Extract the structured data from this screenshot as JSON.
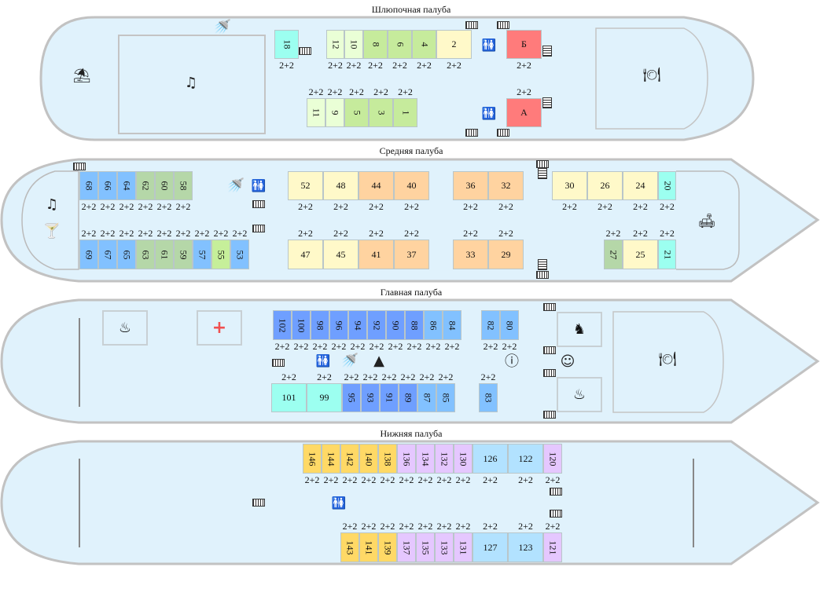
{
  "colors": {
    "pale": "#eaffd6",
    "green": "#c6eb9c",
    "yellow": "#fff9c9",
    "cyan": "#9cfff0",
    "red": "#ff7b7b",
    "blue": "#82c1ff",
    "sage": "#b5d7a8",
    "orange": "#ffd3a0",
    "dblue": "#6f9fff",
    "lime": "#c6ef9a",
    "gold": "#ffd966",
    "lav": "#e5c7ff",
    "sky": "#b2e2ff",
    "hull": "#e0f2fc",
    "hull_stroke": "#c2c2c2"
  },
  "decks": [
    {
      "title": "Шлюпочная палуба",
      "rows": [
        {
          "cabins": [
            {
              "n": "18",
              "cap": "2+2",
              "c": "cyan"
            }
          ]
        },
        {
          "cabins": [
            {
              "n": "12",
              "cap": "2+2",
              "c": "pale"
            },
            {
              "n": "10",
              "cap": "2+2",
              "c": "pale"
            },
            {
              "n": "8",
              "cap": "2+2",
              "c": "green"
            },
            {
              "n": "6",
              "cap": "2+2",
              "c": "green"
            },
            {
              "n": "4",
              "cap": "2+2",
              "c": "green"
            },
            {
              "n": "2",
              "cap": "2+2",
              "c": "yellow"
            }
          ]
        },
        {
          "cabins": [
            {
              "n": "Б",
              "cap": "2+2",
              "c": "red"
            }
          ]
        },
        {
          "cabins": [
            {
              "n": "11",
              "cap": "2+2",
              "c": "pale"
            },
            {
              "n": "9",
              "cap": "2+2",
              "c": "pale"
            },
            {
              "n": "5",
              "cap": "2+2",
              "c": "green"
            },
            {
              "n": "3",
              "cap": "2+2",
              "c": "green"
            },
            {
              "n": "1",
              "cap": "2+2",
              "c": "green"
            }
          ]
        },
        {
          "cabins": [
            {
              "n": "А",
              "cap": "2+2",
              "c": "red"
            }
          ]
        }
      ],
      "icons": [
        "beach-umbrella",
        "music",
        "shower",
        "restroom",
        "restroom",
        "restaurant"
      ]
    },
    {
      "title": "Средняя палуба",
      "rows": [
        {
          "cabins": [
            {
              "n": "68",
              "cap": "2+2",
              "c": "blue"
            },
            {
              "n": "66",
              "cap": "2+2",
              "c": "blue"
            },
            {
              "n": "64",
              "cap": "2+2",
              "c": "blue"
            },
            {
              "n": "62",
              "cap": "2+2",
              "c": "sage"
            },
            {
              "n": "60",
              "cap": "2+2",
              "c": "sage"
            },
            {
              "n": "58",
              "cap": "2+2",
              "c": "sage"
            }
          ]
        },
        {
          "cabins": [
            {
              "n": "69",
              "cap": "2+2",
              "c": "blue"
            },
            {
              "n": "67",
              "cap": "2+2",
              "c": "blue"
            },
            {
              "n": "65",
              "cap": "2+2",
              "c": "blue"
            },
            {
              "n": "63",
              "cap": "2+2",
              "c": "sage"
            },
            {
              "n": "61",
              "cap": "2+2",
              "c": "sage"
            },
            {
              "n": "59",
              "cap": "2+2",
              "c": "sage"
            },
            {
              "n": "57",
              "cap": "2+2",
              "c": "blue"
            },
            {
              "n": "55",
              "cap": "2+2",
              "c": "lime"
            },
            {
              "n": "53",
              "cap": "2+2",
              "c": "blue"
            }
          ]
        },
        {
          "cabins": [
            {
              "n": "52",
              "cap": "2+2",
              "c": "yellow"
            },
            {
              "n": "48",
              "cap": "2+2",
              "c": "yellow"
            },
            {
              "n": "44",
              "cap": "2+2",
              "c": "orange"
            },
            {
              "n": "40",
              "cap": "2+2",
              "c": "orange"
            }
          ]
        },
        {
          "cabins": [
            {
              "n": "36",
              "cap": "2+2",
              "c": "orange"
            },
            {
              "n": "32",
              "cap": "2+2",
              "c": "orange"
            }
          ]
        },
        {
          "cabins": [
            {
              "n": "30",
              "cap": "2+2",
              "c": "yellow"
            },
            {
              "n": "26",
              "cap": "2+2",
              "c": "yellow"
            },
            {
              "n": "24",
              "cap": "2+2",
              "c": "yellow"
            },
            {
              "n": "20",
              "cap": "2+2",
              "c": "cyan"
            }
          ]
        },
        {
          "cabins": [
            {
              "n": "47",
              "cap": "2+2",
              "c": "yellow"
            },
            {
              "n": "45",
              "cap": "2+2",
              "c": "yellow"
            },
            {
              "n": "41",
              "cap": "2+2",
              "c": "orange"
            },
            {
              "n": "37",
              "cap": "2+2",
              "c": "orange"
            }
          ]
        },
        {
          "cabins": [
            {
              "n": "33",
              "cap": "2+2",
              "c": "orange"
            },
            {
              "n": "29",
              "cap": "2+2",
              "c": "orange"
            }
          ]
        },
        {
          "cabins": [
            {
              "n": "27",
              "cap": "2+2",
              "c": "sage"
            },
            {
              "n": "25",
              "cap": "2+2",
              "c": "yellow"
            },
            {
              "n": "21",
              "cap": "2+2",
              "c": "cyan"
            }
          ]
        }
      ],
      "icons": [
        "music",
        "cocktail",
        "shower",
        "restroom",
        "sofa"
      ]
    },
    {
      "title": "Главная палуба",
      "rows": [
        {
          "cabins": [
            {
              "n": "102",
              "cap": "2+2",
              "c": "dblue"
            },
            {
              "n": "100",
              "cap": "2+2",
              "c": "dblue"
            },
            {
              "n": "98",
              "cap": "2+2",
              "c": "dblue"
            },
            {
              "n": "96",
              "cap": "2+2",
              "c": "dblue"
            },
            {
              "n": "94",
              "cap": "2+2",
              "c": "dblue"
            },
            {
              "n": "92",
              "cap": "2+2",
              "c": "dblue"
            },
            {
              "n": "90",
              "cap": "2+2",
              "c": "dblue"
            },
            {
              "n": "88",
              "cap": "2+2",
              "c": "dblue"
            },
            {
              "n": "86",
              "cap": "2+2",
              "c": "blue"
            },
            {
              "n": "84",
              "cap": "2+2",
              "c": "blue"
            }
          ]
        },
        {
          "cabins": [
            {
              "n": "82",
              "cap": "2+2",
              "c": "blue"
            },
            {
              "n": "80",
              "cap": "2+2",
              "c": "blue"
            }
          ]
        },
        {
          "cabins": [
            {
              "n": "101",
              "cap": "2+2",
              "c": "cyan"
            },
            {
              "n": "99",
              "cap": "2+2",
              "c": "cyan"
            },
            {
              "n": "95",
              "cap": "2+2",
              "c": "dblue"
            },
            {
              "n": "93",
              "cap": "2+2",
              "c": "dblue"
            },
            {
              "n": "91",
              "cap": "2+2",
              "c": "dblue"
            },
            {
              "n": "89",
              "cap": "2+2",
              "c": "dblue"
            },
            {
              "n": "87",
              "cap": "2+2",
              "c": "blue"
            },
            {
              "n": "85",
              "cap": "2+2",
              "c": "blue"
            }
          ]
        },
        {
          "cabins": [
            {
              "n": "83",
              "cap": "2+2",
              "c": "blue"
            }
          ]
        }
      ],
      "icons": [
        "spa",
        "first-aid",
        "restroom",
        "shower",
        "iron",
        "info",
        "rocking-horse",
        "baby",
        "ladle",
        "restaurant"
      ]
    },
    {
      "title": "Нижняя палуба",
      "rows": [
        {
          "cabins": [
            {
              "n": "146",
              "cap": "2+2",
              "c": "gold"
            },
            {
              "n": "144",
              "cap": "2+2",
              "c": "gold"
            },
            {
              "n": "142",
              "cap": "2+2",
              "c": "gold"
            },
            {
              "n": "140",
              "cap": "2+2",
              "c": "gold"
            },
            {
              "n": "138",
              "cap": "2+2",
              "c": "gold"
            },
            {
              "n": "136",
              "cap": "2+2",
              "c": "lav"
            },
            {
              "n": "134",
              "cap": "2+2",
              "c": "lav"
            },
            {
              "n": "132",
              "cap": "2+2",
              "c": "lav"
            },
            {
              "n": "130",
              "cap": "2+2",
              "c": "lav"
            },
            {
              "n": "126",
              "cap": "2+2",
              "c": "sky"
            },
            {
              "n": "122",
              "cap": "2+2",
              "c": "sky"
            },
            {
              "n": "120",
              "cap": "2+2",
              "c": "lav"
            }
          ]
        },
        {
          "cabins": [
            {
              "n": "143",
              "cap": "2+2",
              "c": "gold"
            },
            {
              "n": "141",
              "cap": "2+2",
              "c": "gold"
            },
            {
              "n": "139",
              "cap": "2+2",
              "c": "gold"
            },
            {
              "n": "137",
              "cap": "2+2",
              "c": "lav"
            },
            {
              "n": "135",
              "cap": "2+2",
              "c": "lav"
            },
            {
              "n": "133",
              "cap": "2+2",
              "c": "lav"
            },
            {
              "n": "131",
              "cap": "2+2",
              "c": "lav"
            },
            {
              "n": "127",
              "cap": "2+2",
              "c": "sky"
            },
            {
              "n": "123",
              "cap": "2+2",
              "c": "sky"
            },
            {
              "n": "121",
              "cap": "2+2",
              "c": "lav"
            }
          ]
        }
      ],
      "icons": [
        "restroom"
      ]
    }
  ]
}
